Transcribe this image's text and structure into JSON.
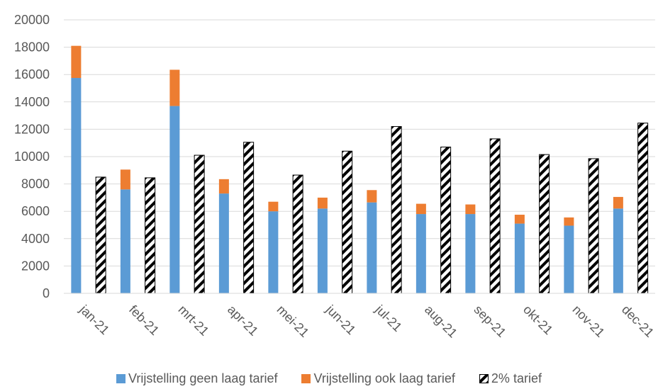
{
  "chart_data": {
    "type": "bar",
    "title": "",
    "xlabel": "",
    "ylabel": "",
    "ylim": [
      0,
      20000
    ],
    "yticks": [
      0,
      2000,
      4000,
      6000,
      8000,
      10000,
      12000,
      14000,
      16000,
      18000,
      20000
    ],
    "grid": true,
    "legend_position": "bottom",
    "categories": [
      "jan-21",
      "feb-21",
      "mrt-21",
      "apr-21",
      "mei-21",
      "jun-21",
      "jul-21",
      "aug-21",
      "sep-21",
      "okt-21",
      "nov-21",
      "dec-21"
    ],
    "series": [
      {
        "name": "Vrijstelling geen laag tarief",
        "color": "#5b9bd5",
        "stack": "vrijstelling",
        "values": [
          15750,
          7600,
          13700,
          7300,
          6000,
          6200,
          6650,
          5800,
          5800,
          5100,
          4950,
          6200
        ]
      },
      {
        "name": "Vrijstelling ook laag tarief",
        "color": "#ed7d31",
        "stack": "vrijstelling",
        "values": [
          2350,
          1450,
          2650,
          1050,
          700,
          800,
          900,
          750,
          700,
          650,
          600,
          850
        ]
      },
      {
        "name": "2% tarief",
        "color": "#000000",
        "pattern": "diagonal-hatch",
        "stack": "tarief",
        "values": [
          8500,
          8450,
          10100,
          11050,
          8650,
          10400,
          12200,
          10700,
          11300,
          10150,
          9850,
          12450
        ]
      }
    ]
  }
}
